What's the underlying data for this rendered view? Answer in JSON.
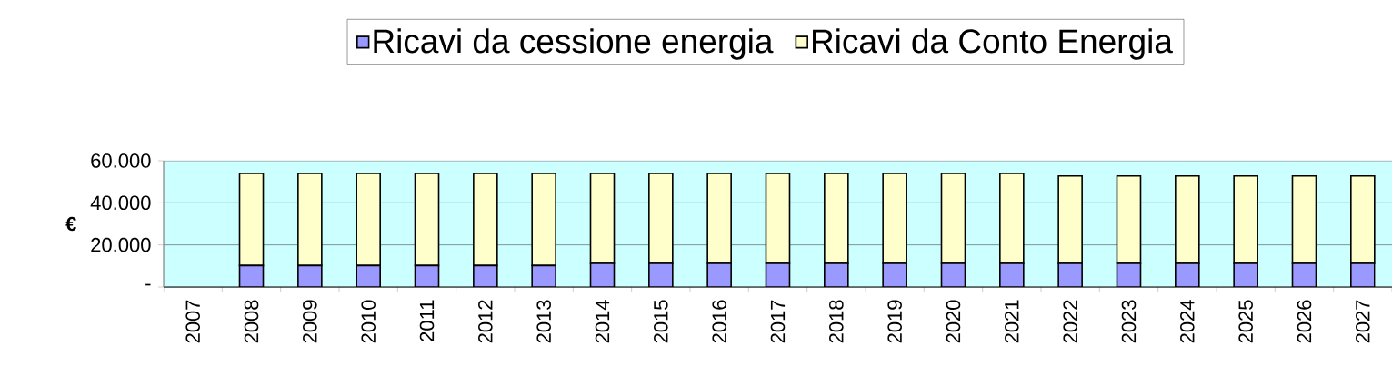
{
  "chart_data": {
    "type": "bar",
    "stacked": true,
    "ylabel": "€",
    "categories": [
      "2007",
      "2008",
      "2009",
      "2010",
      "2011",
      "2012",
      "2013",
      "2014",
      "2015",
      "2016",
      "2017",
      "2018",
      "2019",
      "2020",
      "2021",
      "2022",
      "2023",
      "2024",
      "2025",
      "2026",
      "2027"
    ],
    "series": [
      {
        "name": "Ricavi da cessione energia",
        "color": "#9999ff",
        "values": [
          null,
          10200,
          10200,
          10200,
          10200,
          10200,
          10200,
          11200,
          11200,
          11200,
          11200,
          11200,
          11200,
          11200,
          11200,
          11200,
          11200,
          11200,
          11200,
          11200,
          11200
        ]
      },
      {
        "name": "Ricavi da Conto Energia",
        "color": "#ffffcc",
        "values": [
          null,
          43800,
          43800,
          43800,
          43800,
          43800,
          43800,
          42800,
          42800,
          42800,
          42800,
          42800,
          42800,
          42800,
          42800,
          41600,
          41600,
          41600,
          41600,
          41600,
          41600
        ]
      }
    ],
    "ylim": [
      0,
      60000
    ],
    "yticks": [
      {
        "value": 0,
        "label": "-"
      },
      {
        "value": 20000,
        "label": "20.000"
      },
      {
        "value": 40000,
        "label": "40.000"
      },
      {
        "value": 60000,
        "label": "60.000"
      }
    ],
    "grid": "y",
    "legend": "top"
  }
}
